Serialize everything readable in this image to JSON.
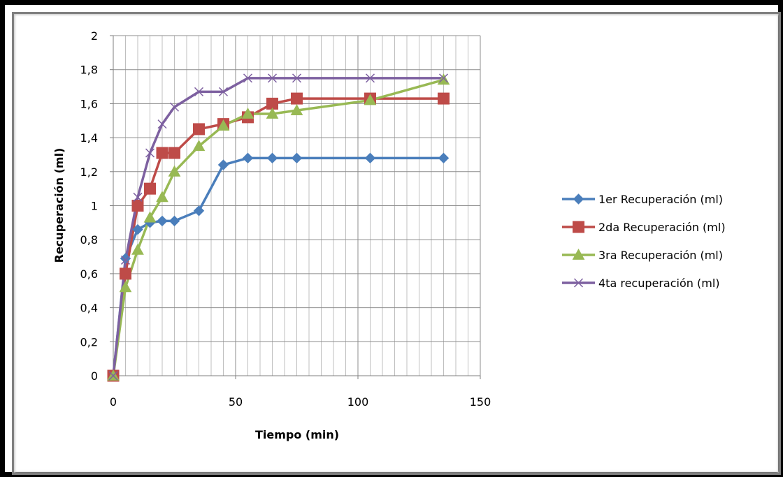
{
  "chart_data": {
    "type": "line",
    "title": "",
    "xlabel": "Tiempo (min)",
    "ylabel": "Recuperación (ml)",
    "xlim": [
      0,
      150
    ],
    "ylim": [
      0,
      2
    ],
    "xticks": [
      0,
      50,
      100,
      150
    ],
    "xtick_labels": [
      "0",
      "50",
      "100",
      "150"
    ],
    "yticks": [
      0,
      0.2,
      0.4,
      0.6,
      0.8,
      1,
      1.2,
      1.4,
      1.6,
      1.8,
      2
    ],
    "ytick_labels": [
      "0",
      "0,2",
      "0,4",
      "0,6",
      "0,8",
      "1",
      "1,2",
      "1,4",
      "1,6",
      "1,8",
      "2"
    ],
    "grid": true,
    "legend_position": "right",
    "series": [
      {
        "name": "1er Recuperación (ml)",
        "color": "#4a7ebb",
        "marker": "diamond",
        "x": [
          0,
          5,
          10,
          15,
          20,
          25,
          35,
          45,
          55,
          65,
          75,
          105,
          135
        ],
        "y": [
          0,
          0.69,
          0.86,
          0.9,
          0.91,
          0.91,
          0.97,
          1.24,
          1.28,
          1.28,
          1.28,
          1.28,
          1.28
        ]
      },
      {
        "name": "2da Recuperación (ml)",
        "color": "#be4b48",
        "marker": "square",
        "x": [
          0,
          5,
          10,
          15,
          20,
          25,
          35,
          45,
          55,
          65,
          75,
          105,
          135
        ],
        "y": [
          0,
          0.6,
          1.0,
          1.1,
          1.31,
          1.31,
          1.45,
          1.48,
          1.52,
          1.6,
          1.63,
          1.63,
          1.63
        ]
      },
      {
        "name": "3ra Recuperación (ml)",
        "color": "#98b954",
        "marker": "triangle",
        "x": [
          0,
          5,
          10,
          15,
          20,
          25,
          35,
          45,
          55,
          65,
          75,
          105,
          135
        ],
        "y": [
          0,
          0.52,
          0.74,
          0.93,
          1.05,
          1.2,
          1.35,
          1.47,
          1.54,
          1.54,
          1.56,
          1.62,
          1.74
        ]
      },
      {
        "name": "4ta recuperación (ml)",
        "color": "#7d60a0",
        "marker": "x",
        "x": [
          0,
          5,
          10,
          15,
          20,
          25,
          35,
          45,
          55,
          65,
          75,
          105,
          135
        ],
        "y": [
          0,
          0.68,
          1.05,
          1.31,
          1.48,
          1.58,
          1.67,
          1.67,
          1.75,
          1.75,
          1.75,
          1.75,
          1.75
        ]
      }
    ]
  }
}
